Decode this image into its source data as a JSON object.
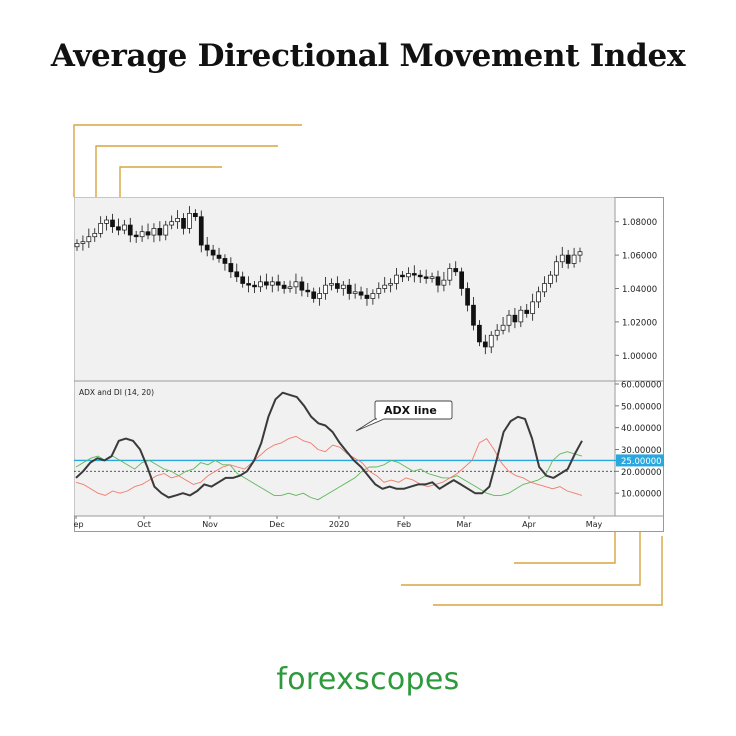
{
  "title": "Average Directional Movement Index",
  "brand": "forexscopes",
  "colors": {
    "gold": "#d9a441",
    "adx": "#3a3a3a",
    "plus_di": "#5cb85c",
    "minus_di": "#f07b6b",
    "level": "#29a8e0",
    "brand": "#2e9a3d"
  },
  "chart_data": [
    {
      "type": "candlestick",
      "panel": "price",
      "ylim": [
        0.99,
        1.09
      ],
      "y_ticks": [
        "1.08000",
        "1.06000",
        "1.04000",
        "1.02000",
        "1.00000"
      ],
      "close": [
        1.067,
        1.068,
        1.071,
        1.073,
        1.079,
        1.081,
        1.077,
        1.075,
        1.078,
        1.072,
        1.071,
        1.074,
        1.072,
        1.076,
        1.072,
        1.078,
        1.08,
        1.082,
        1.076,
        1.085,
        1.083,
        1.066,
        1.063,
        1.06,
        1.058,
        1.055,
        1.05,
        1.047,
        1.043,
        1.042,
        1.041,
        1.044,
        1.042,
        1.044,
        1.042,
        1.04,
        1.041,
        1.044,
        1.039,
        1.038,
        1.034,
        1.037,
        1.042,
        1.043,
        1.04,
        1.042,
        1.037,
        1.038,
        1.036,
        1.034,
        1.037,
        1.04,
        1.042,
        1.043,
        1.048,
        1.047,
        1.049,
        1.048,
        1.047,
        1.046,
        1.047,
        1.042,
        1.045,
        1.052,
        1.05,
        1.04,
        1.03,
        1.018,
        1.008,
        1.005,
        1.012,
        1.015,
        1.018,
        1.024,
        1.02,
        1.027,
        1.025,
        1.032,
        1.038,
        1.043,
        1.048,
        1.056,
        1.06,
        1.055,
        1.06,
        1.062
      ]
    },
    {
      "type": "line",
      "panel": "indicator",
      "title": "ADX and DI (14, 20)",
      "ylim": [
        0,
        60
      ],
      "y_ticks": [
        "60.00000",
        "50.00000",
        "40.00000",
        "30.00000",
        "25.00000",
        "20.00000",
        "10.00000"
      ],
      "x_labels": [
        "Sep",
        "Oct",
        "Nov",
        "Dec",
        "2020",
        "Feb",
        "Mar",
        "Apr",
        "May"
      ],
      "reference_lines": [
        {
          "value": 25,
          "style": "solid",
          "color": "blue"
        },
        {
          "value": 20,
          "style": "dashed"
        }
      ],
      "series": [
        {
          "values": [
            17,
            20,
            24,
            26,
            25,
            27,
            34,
            35,
            34,
            30,
            22,
            13,
            10,
            8,
            9,
            10,
            9,
            11,
            14,
            13,
            15,
            17,
            17,
            18,
            20,
            25,
            33,
            45,
            53,
            56,
            55,
            54,
            50,
            45,
            42,
            41,
            38,
            33,
            29,
            25,
            22,
            18,
            14,
            12,
            13,
            12,
            12,
            13,
            14,
            14,
            15,
            12,
            14,
            16,
            14,
            12,
            10,
            10,
            13,
            25,
            38,
            43,
            45,
            44,
            35,
            22,
            18,
            17,
            19,
            21,
            28,
            34
          ]
        },
        {
          "values": [
            22,
            24,
            26,
            27,
            25,
            27,
            25,
            23,
            21,
            24,
            25,
            23,
            21,
            20,
            18,
            20,
            21,
            24,
            23,
            25,
            23,
            23,
            19,
            17,
            15,
            13,
            11,
            9,
            9,
            10,
            9,
            10,
            8,
            7,
            9,
            11,
            13,
            15,
            17,
            20,
            22,
            22,
            23,
            25,
            24,
            22,
            20,
            21,
            19,
            18,
            17,
            17,
            18,
            16,
            14,
            12,
            10,
            9,
            9,
            10,
            12,
            14,
            15,
            16,
            18,
            25,
            28,
            29,
            28,
            27
          ]
        },
        {
          "values": [
            15,
            14,
            12,
            10,
            9,
            11,
            10,
            11,
            13,
            14,
            16,
            18,
            19,
            17,
            18,
            16,
            14,
            15,
            18,
            20,
            22,
            23,
            22,
            21,
            24,
            27,
            30,
            32,
            33,
            35,
            36,
            34,
            33,
            30,
            29,
            32,
            31,
            28,
            26,
            24,
            20,
            18,
            15,
            16,
            15,
            17,
            16,
            14,
            13,
            14,
            15,
            17,
            19,
            22,
            25,
            33,
            35,
            30,
            24,
            20,
            18,
            17,
            15,
            14,
            13,
            12,
            13,
            11,
            10,
            9
          ]
        }
      ],
      "annotation": "ADX line"
    }
  ]
}
